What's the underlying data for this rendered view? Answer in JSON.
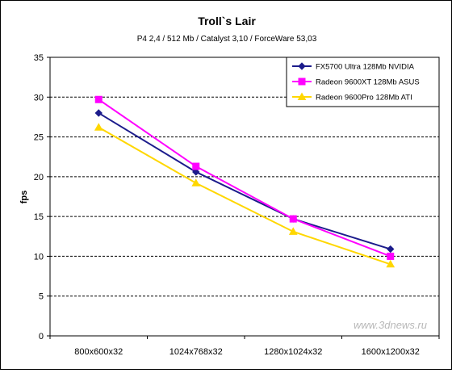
{
  "chart_data": {
    "type": "line",
    "title": "Troll`s Lair",
    "subtitle": "P4 2,4 / 512 Mb / Catalyst 3,10 / ForceWare 53,03",
    "xlabel": "",
    "ylabel": "fps",
    "categories": [
      "800x600x32",
      "1024x768x32",
      "1280x1024x32",
      "1600x1200x32"
    ],
    "ylim": [
      0,
      35
    ],
    "yticks": [
      "0",
      "5",
      "10",
      "15",
      "20",
      "25",
      "30",
      "35"
    ],
    "grid": "horizontal dashed",
    "legend_position": "top-right",
    "series": [
      {
        "name": "FX5700 Ultra 128Mb NVIDIA",
        "color": "#1c1c8c",
        "marker": "diamond",
        "values": [
          28.0,
          20.6,
          14.7,
          10.9
        ]
      },
      {
        "name": "Radeon 9600XT 128Mb ASUS",
        "color": "#ff00ff",
        "marker": "square",
        "values": [
          29.7,
          21.3,
          14.7,
          10.0
        ]
      },
      {
        "name": "Radeon 9600Pro 128Mb ATI",
        "color": "#ffd700",
        "marker": "triangle",
        "values": [
          26.2,
          19.2,
          13.1,
          9.0
        ]
      }
    ]
  },
  "watermark": "www.3dnews.ru"
}
